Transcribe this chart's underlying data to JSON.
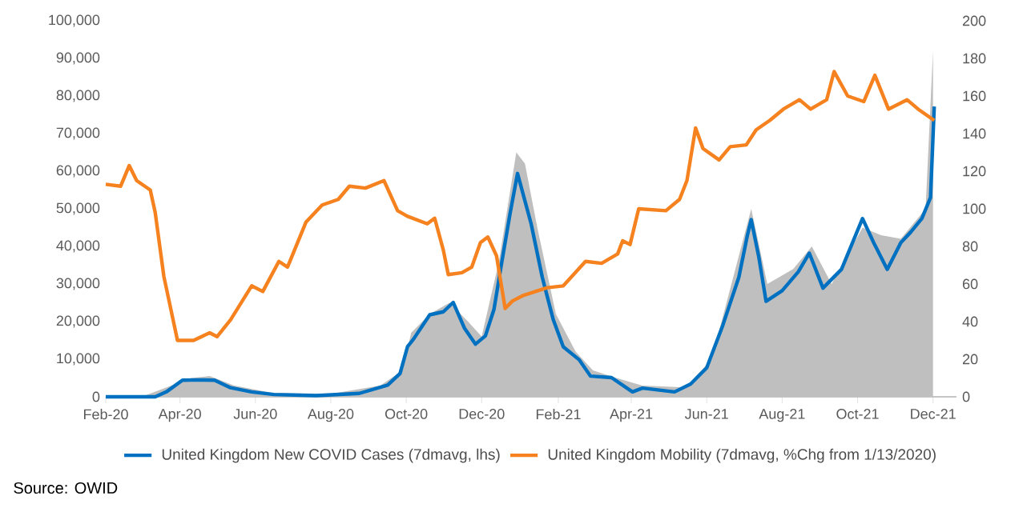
{
  "chart_data": {
    "type": "line",
    "legend": "bottom",
    "xlim": [
      "2020-02-01",
      "2021-12-20"
    ],
    "xticks": [
      {
        "value": "2020-02",
        "label": "Feb-20"
      },
      {
        "value": "2020-04",
        "label": "Apr-20"
      },
      {
        "value": "2020-06",
        "label": "Jun-20"
      },
      {
        "value": "2020-08",
        "label": "Aug-20"
      },
      {
        "value": "2020-10",
        "label": "Oct-20"
      },
      {
        "value": "2020-12",
        "label": "Dec-20"
      },
      {
        "value": "2021-02",
        "label": "Feb-21"
      },
      {
        "value": "2021-04",
        "label": "Apr-21"
      },
      {
        "value": "2021-06",
        "label": "Jun-21"
      },
      {
        "value": "2021-08",
        "label": "Aug-21"
      },
      {
        "value": "2021-10",
        "label": "Oct-21"
      },
      {
        "value": "2021-12",
        "label": "Dec-21"
      }
    ],
    "ylim": [
      0,
      100000
    ],
    "yticks": [
      0,
      {
        "value": 10000,
        "label": "10,000"
      },
      {
        "value": 20000,
        "label": "20,000"
      },
      {
        "value": 30000,
        "label": "30,000"
      },
      {
        "value": 40000,
        "label": "40,000"
      },
      {
        "value": 50000,
        "label": "50,000"
      },
      {
        "value": 60000,
        "label": "60,000"
      },
      {
        "value": 70000,
        "label": "70,000"
      },
      {
        "value": 80000,
        "label": "80,000"
      },
      {
        "value": 90000,
        "label": "90,000"
      },
      {
        "value": 100000,
        "label": "100,000"
      }
    ],
    "y2lim": [
      0,
      200
    ],
    "y2ticks": [
      0,
      20,
      40,
      60,
      80,
      100,
      120,
      140,
      160,
      180,
      200
    ],
    "series": [
      {
        "type": "area",
        "color": "#bfbfbf",
        "x": [
          "2020-03-01",
          "2020-03-25",
          "2020-04-10",
          "2020-04-25",
          "2020-05-15",
          "2020-06-15",
          "2020-08-01",
          "2020-09-10",
          "2020-09-28",
          "2020-10-05",
          "2020-10-20",
          "2020-11-05",
          "2020-11-20",
          "2020-12-01",
          "2020-12-15",
          "2020-12-29",
          "2021-01-05",
          "2021-01-15",
          "2021-01-30",
          "2021-02-15",
          "2021-03-01",
          "2021-03-20",
          "2021-04-10",
          "2021-05-15",
          "2021-06-05",
          "2021-06-25",
          "2021-07-07",
          "2021-07-20",
          "2021-08-10",
          "2021-08-25",
          "2021-09-10",
          "2021-10-05",
          "2021-10-20",
          "2021-11-05",
          "2021-11-25",
          "2021-12-01"
        ],
        "values": [
          0,
          3000,
          5000,
          5500,
          3000,
          1000,
          800,
          3000,
          7000,
          17000,
          22000,
          25000,
          20000,
          16000,
          36000,
          65000,
          62000,
          45000,
          22000,
          12000,
          7000,
          5000,
          3000,
          2500,
          10000,
          35000,
          50000,
          30000,
          34000,
          40000,
          30000,
          45000,
          43000,
          42000,
          50000,
          92000
        ]
      },
      {
        "name": "United Kingdom New COVID Cases (7dmavg, lhs)",
        "color": "#0070c0",
        "x": [
          "2020-02-01",
          "2020-03-12",
          "2020-03-21",
          "2020-04-03",
          "2020-04-16",
          "2020-04-29",
          "2020-05-12",
          "2020-05-29",
          "2020-06-16",
          "2020-07-20",
          "2020-08-24",
          "2020-09-16",
          "2020-09-26",
          "2020-10-02",
          "2020-10-07",
          "2020-10-20",
          "2020-10-31",
          "2020-11-08",
          "2020-11-17",
          "2020-11-26",
          "2020-12-04",
          "2020-12-11",
          "2020-12-17",
          "2020-12-24",
          "2020-12-30",
          "2021-01-10",
          "2021-01-19",
          "2021-01-28",
          "2021-02-05",
          "2021-02-18",
          "2021-02-27",
          "2021-03-16",
          "2021-04-02",
          "2021-04-10",
          "2021-05-06",
          "2021-05-19",
          "2021-06-01",
          "2021-06-14",
          "2021-06-27",
          "2021-07-04",
          "2021-07-07",
          "2021-07-13",
          "2021-07-19",
          "2021-08-01",
          "2021-08-14",
          "2021-08-23",
          "2021-09-03",
          "2021-09-18",
          "2021-10-05",
          "2021-10-14",
          "2021-10-25",
          "2021-11-05",
          "2021-11-13",
          "2021-11-22",
          "2021-11-29",
          "2021-12-02"
        ],
        "values": [
          0,
          0,
          1300,
          4400,
          4500,
          4400,
          2400,
          1300,
          600,
          300,
          900,
          3100,
          6200,
          13300,
          15400,
          21800,
          22600,
          25100,
          18300,
          14000,
          16200,
          23300,
          35300,
          48800,
          59400,
          46000,
          31800,
          20400,
          13300,
          9800,
          5500,
          5100,
          1300,
          2300,
          1300,
          3400,
          7700,
          19000,
          31800,
          43100,
          47100,
          37400,
          25400,
          28200,
          33200,
          38200,
          28900,
          33900,
          47400,
          41000,
          33900,
          41000,
          43800,
          47400,
          53000,
          77200
        ]
      },
      {
        "axis": "y2",
        "name": "United Kingdom Mobility (7dmavg, %Chg from 1/13/2020)",
        "color": "#f5821f",
        "x": [
          "2020-02-01",
          "2020-02-13",
          "2020-02-20",
          "2020-02-26",
          "2020-03-08",
          "2020-03-12",
          "2020-03-19",
          "2020-03-30",
          "2020-04-12",
          "2020-04-25",
          "2020-05-01",
          "2020-05-12",
          "2020-05-29",
          "2020-06-07",
          "2020-06-20",
          "2020-06-27",
          "2020-07-12",
          "2020-07-25",
          "2020-08-07",
          "2020-08-16",
          "2020-08-29",
          "2020-09-13",
          "2020-09-24",
          "2020-10-02",
          "2020-10-18",
          "2020-10-24",
          "2020-10-31",
          "2020-11-04",
          "2020-11-15",
          "2020-11-23",
          "2020-11-30",
          "2020-12-06",
          "2020-12-13",
          "2020-12-20",
          "2020-12-26",
          "2021-01-04",
          "2021-01-23",
          "2021-02-05",
          "2021-02-23",
          "2021-03-08",
          "2021-03-21",
          "2021-03-25",
          "2021-03-31",
          "2021-04-07",
          "2021-04-29",
          "2021-05-10",
          "2021-05-16",
          "2021-05-23",
          "2021-05-29",
          "2021-06-11",
          "2021-06-20",
          "2021-07-03",
          "2021-07-11",
          "2021-07-22",
          "2021-08-02",
          "2021-08-15",
          "2021-08-24",
          "2021-09-06",
          "2021-09-12",
          "2021-09-23",
          "2021-10-06",
          "2021-10-15",
          "2021-10-26",
          "2021-11-10",
          "2021-11-19",
          "2021-12-02"
        ],
        "values": [
          113,
          112,
          123,
          115,
          110,
          98,
          64,
          30,
          30,
          34,
          32,
          41,
          59,
          56,
          72,
          69,
          93,
          102,
          105,
          112,
          111,
          115,
          99,
          96,
          92,
          95,
          78,
          65,
          66,
          69,
          82,
          85,
          75,
          47,
          51,
          54,
          58,
          59,
          72,
          71,
          76,
          83,
          81,
          100,
          99,
          105,
          115,
          143,
          132,
          126,
          133,
          134,
          142,
          147,
          153,
          158,
          153,
          158,
          173,
          160,
          157,
          171,
          153,
          158,
          153,
          147
        ]
      }
    ],
    "annotations": [
      "Source: OWID"
    ]
  }
}
